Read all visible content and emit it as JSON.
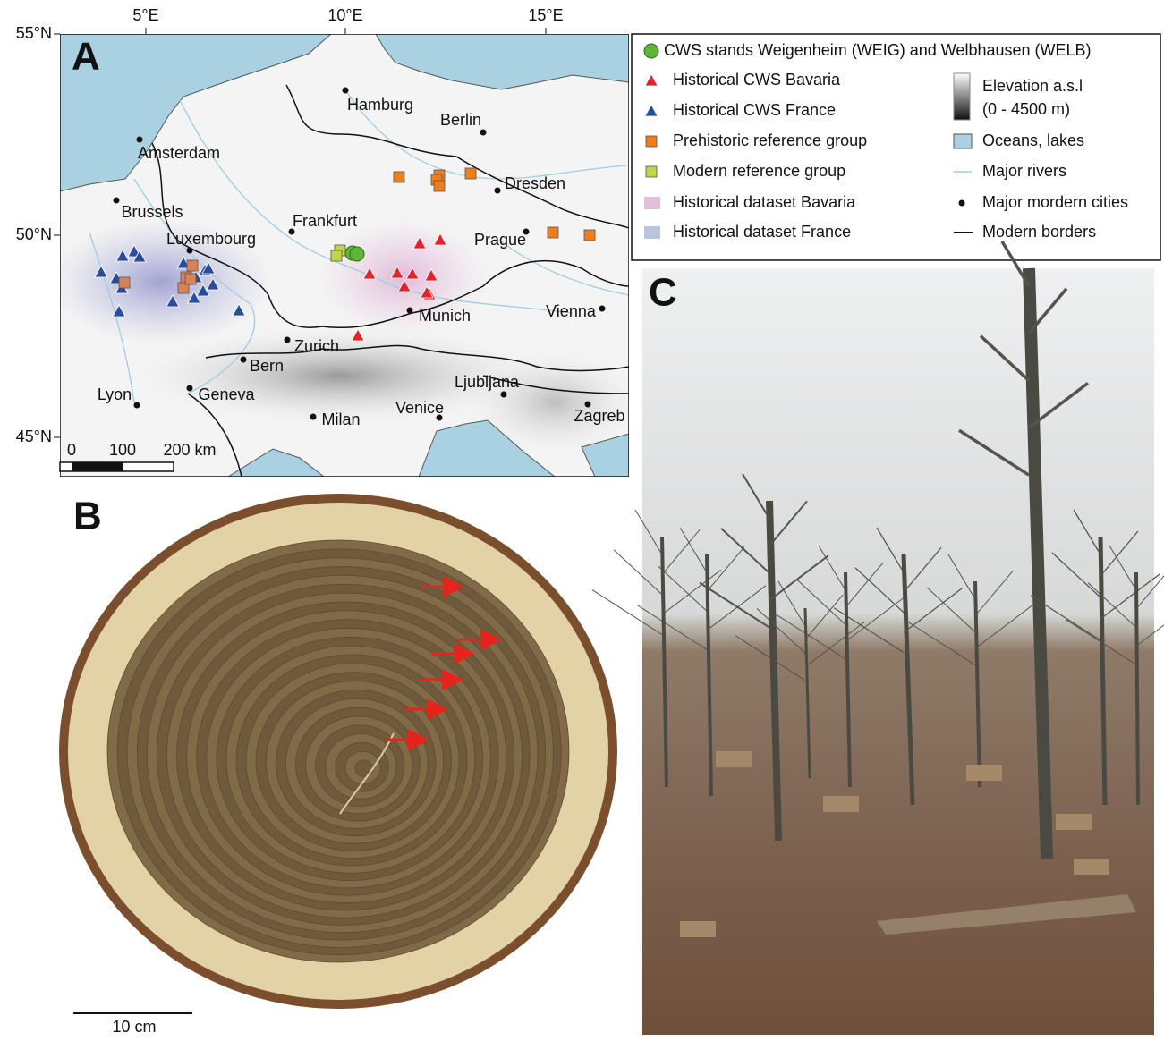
{
  "panels": {
    "a": {
      "label": "A",
      "lat_ticks": [
        "55°N",
        "50°N",
        "45°N"
      ],
      "lon_ticks": [
        "5°E",
        "10°E",
        "15°E"
      ],
      "cities": [
        "Hamburg",
        "Berlin",
        "Amsterdam",
        "Dresden",
        "Brussels",
        "Frankfurt",
        "Luxembourg",
        "Prague",
        "Munich",
        "Vienna",
        "Zurich",
        "Bern",
        "Lyon",
        "Geneva",
        "Ljubljana",
        "Milan",
        "Venice",
        "Zagreb"
      ],
      "legend": [
        "CWS stands Weigenheim (WEIG) and Welbhausen (WELB)",
        "Historical CWS Bavaria",
        "Historical CWS France",
        "Prehistoric reference group",
        "Modern reference group",
        "Historical dataset Bavaria",
        "Historical dataset France",
        "Elevation a.s.l",
        "(0 - 4500 m)",
        "Oceans, lakes",
        "Major rivers",
        "Major mordern cities",
        "Modern borders"
      ],
      "scale_bar": [
        "0",
        "100",
        "200 km"
      ]
    },
    "b": {
      "label": "B",
      "scale_bar": "10 cm"
    },
    "c": {
      "label": "C"
    }
  }
}
